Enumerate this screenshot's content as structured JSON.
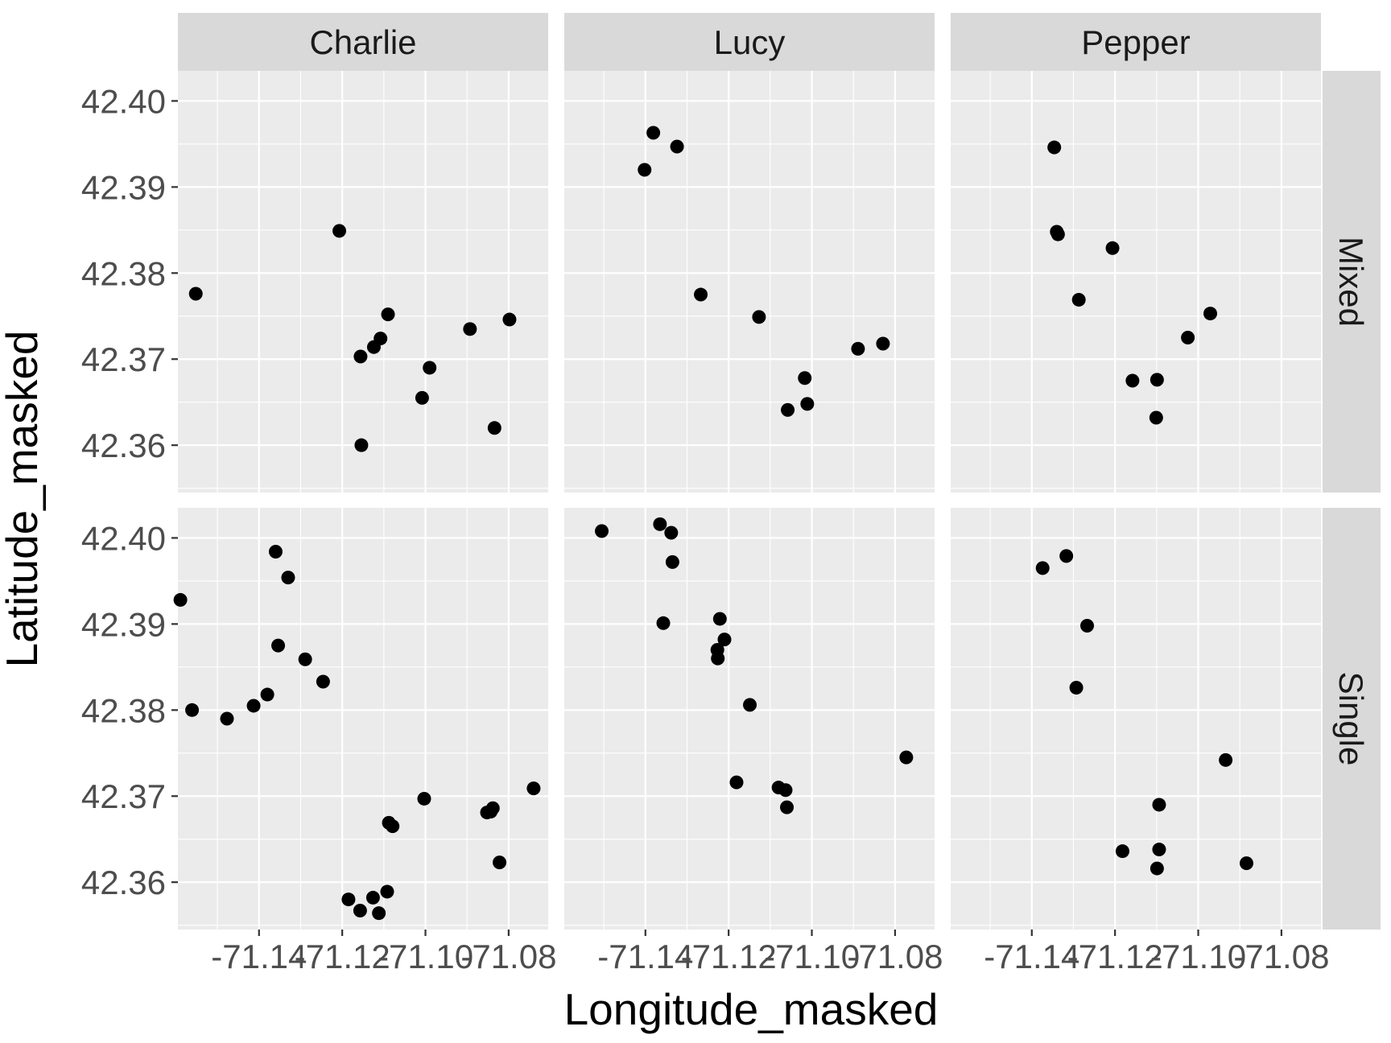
{
  "chart_data": {
    "type": "scatter",
    "facet_columns": [
      "Charlie",
      "Lucy",
      "Pepper"
    ],
    "facet_rows": [
      "Mixed",
      "Single"
    ],
    "xlabel": "Longitude_masked",
    "ylabel": "Latitude_masked",
    "xlim": [
      -71.1595,
      -71.0705
    ],
    "ylim": [
      42.3545,
      42.4035
    ],
    "x_ticks": [
      -71.14,
      -71.12,
      -71.1,
      -71.08
    ],
    "x_tick_labels": [
      "-71.14",
      "-71.12",
      "-71.10",
      "-71.08"
    ],
    "y_ticks": [
      42.36,
      42.37,
      42.38,
      42.39,
      42.4
    ],
    "y_tick_labels": [
      "42.36",
      "42.37",
      "42.38",
      "42.39",
      "42.40"
    ],
    "grid": true,
    "panels": [
      {
        "column": "Charlie",
        "row": "Mixed",
        "points": [
          {
            "x": -71.1552,
            "y": 42.3776
          },
          {
            "x": -71.1207,
            "y": 42.3849
          },
          {
            "x": -71.1156,
            "y": 42.3703
          },
          {
            "x": -71.1124,
            "y": 42.3714
          },
          {
            "x": -71.1108,
            "y": 42.3724
          },
          {
            "x": -71.109,
            "y": 42.3752
          },
          {
            "x": -71.099,
            "y": 42.369
          },
          {
            "x": -71.1008,
            "y": 42.3655
          },
          {
            "x": -71.0893,
            "y": 42.3735
          },
          {
            "x": -71.0798,
            "y": 42.3746
          },
          {
            "x": -71.0834,
            "y": 42.362
          },
          {
            "x": -71.1154,
            "y": 42.36
          }
        ]
      },
      {
        "column": "Lucy",
        "row": "Mixed",
        "points": [
          {
            "x": -71.1381,
            "y": 42.3963
          },
          {
            "x": -71.1324,
            "y": 42.3947
          },
          {
            "x": -71.1402,
            "y": 42.392
          },
          {
            "x": -71.1267,
            "y": 42.3775
          },
          {
            "x": -71.1127,
            "y": 42.3749
          },
          {
            "x": -71.1017,
            "y": 42.3678
          },
          {
            "x": -71.1011,
            "y": 42.3648
          },
          {
            "x": -71.1058,
            "y": 42.3641
          },
          {
            "x": -71.0889,
            "y": 42.3712
          },
          {
            "x": -71.0829,
            "y": 42.3718
          }
        ]
      },
      {
        "column": "Pepper",
        "row": "Mixed",
        "points": [
          {
            "x": -71.1346,
            "y": 42.3946
          },
          {
            "x": -71.134,
            "y": 42.3848
          },
          {
            "x": -71.1337,
            "y": 42.3845
          },
          {
            "x": -71.1287,
            "y": 42.3769
          },
          {
            "x": -71.1206,
            "y": 42.3829
          },
          {
            "x": -71.1158,
            "y": 42.3675
          },
          {
            "x": -71.1099,
            "y": 42.3676
          },
          {
            "x": -71.1101,
            "y": 42.3632
          },
          {
            "x": -71.1025,
            "y": 42.3725
          },
          {
            "x": -71.0971,
            "y": 42.3753
          }
        ]
      },
      {
        "column": "Charlie",
        "row": "Single",
        "points": [
          {
            "x": -71.1589,
            "y": 42.3928
          },
          {
            "x": -71.1561,
            "y": 42.38
          },
          {
            "x": -71.1477,
            "y": 42.379
          },
          {
            "x": -71.1413,
            "y": 42.3805
          },
          {
            "x": -71.138,
            "y": 42.3818
          },
          {
            "x": -71.136,
            "y": 42.3984
          },
          {
            "x": -71.1354,
            "y": 42.3875
          },
          {
            "x": -71.133,
            "y": 42.3954
          },
          {
            "x": -71.1289,
            "y": 42.3859
          },
          {
            "x": -71.1246,
            "y": 42.3833
          },
          {
            "x": -71.1185,
            "y": 42.358
          },
          {
            "x": -71.1157,
            "y": 42.3567
          },
          {
            "x": -71.1126,
            "y": 42.3582
          },
          {
            "x": -71.1112,
            "y": 42.3564
          },
          {
            "x": -71.1092,
            "y": 42.3589
          },
          {
            "x": -71.1088,
            "y": 42.3669
          },
          {
            "x": -71.1079,
            "y": 42.3665
          },
          {
            "x": -71.1003,
            "y": 42.3697
          },
          {
            "x": -71.0852,
            "y": 42.3681
          },
          {
            "x": -71.0843,
            "y": 42.3682
          },
          {
            "x": -71.0838,
            "y": 42.3686
          },
          {
            "x": -71.0822,
            "y": 42.3623
          },
          {
            "x": -71.074,
            "y": 42.3709
          }
        ]
      },
      {
        "column": "Lucy",
        "row": "Single",
        "points": [
          {
            "x": -71.1505,
            "y": 42.4008
          },
          {
            "x": -71.1365,
            "y": 42.4016
          },
          {
            "x": -71.1338,
            "y": 42.4006
          },
          {
            "x": -71.1357,
            "y": 42.3901
          },
          {
            "x": -71.1335,
            "y": 42.3972
          },
          {
            "x": -71.1221,
            "y": 42.3906
          },
          {
            "x": -71.121,
            "y": 42.3882
          },
          {
            "x": -71.1227,
            "y": 42.387
          },
          {
            "x": -71.1226,
            "y": 42.386
          },
          {
            "x": -71.1149,
            "y": 42.3806
          },
          {
            "x": -71.1181,
            "y": 42.3716
          },
          {
            "x": -71.108,
            "y": 42.371
          },
          {
            "x": -71.1063,
            "y": 42.3707
          },
          {
            "x": -71.106,
            "y": 42.3687
          },
          {
            "x": -71.0773,
            "y": 42.3745
          }
        ]
      },
      {
        "column": "Pepper",
        "row": "Single",
        "points": [
          {
            "x": -71.1374,
            "y": 42.3965
          },
          {
            "x": -71.1317,
            "y": 42.3979
          },
          {
            "x": -71.1267,
            "y": 42.3898
          },
          {
            "x": -71.1293,
            "y": 42.3826
          },
          {
            "x": -71.1182,
            "y": 42.3636
          },
          {
            "x": -71.1094,
            "y": 42.369
          },
          {
            "x": -71.1094,
            "y": 42.3638
          },
          {
            "x": -71.1099,
            "y": 42.3616
          },
          {
            "x": -71.0934,
            "y": 42.3742
          },
          {
            "x": -71.0884,
            "y": 42.3622
          }
        ]
      }
    ]
  }
}
